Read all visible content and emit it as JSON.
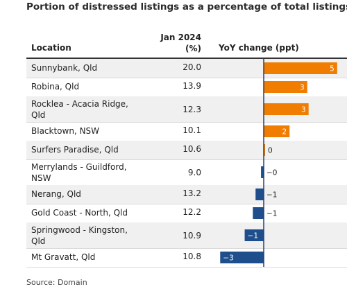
{
  "title": "Portion of distressed listings as a percentage of total listings",
  "headers": {
    "location": "Location",
    "value_line1": "Jan 2024",
    "value_line2": "(%)",
    "yoy": "YoY change (ppt)"
  },
  "source": "Source: Domain",
  "colors": {
    "positive": "#f07c00",
    "negative": "#1f4e8c",
    "axis": "#2a3f6e"
  },
  "chart_data": {
    "type": "table",
    "title": "Portion of distressed listings as a percentage of total listings",
    "columns": [
      "Location",
      "Jan 2024 (%)",
      "YoY change (ppt)"
    ],
    "rows": [
      {
        "location": "Sunnybank, Qld",
        "value": "20.0",
        "change": 5.4,
        "change_label": "5"
      },
      {
        "location": "Robina, Qld",
        "value": "13.9",
        "change": 3.2,
        "change_label": "3"
      },
      {
        "location": "Rocklea - Acacia Ridge, Qld",
        "value": "12.3",
        "change": 3.3,
        "change_label": "3"
      },
      {
        "location": "Blacktown, NSW",
        "value": "10.1",
        "change": 1.9,
        "change_label": "2"
      },
      {
        "location": "Surfers Paradise, Qld",
        "value": "10.6",
        "change": 0.1,
        "change_label": "0"
      },
      {
        "location": "Merrylands - Guildford, NSW",
        "value": "9.0",
        "change": -0.2,
        "change_label": "−0"
      },
      {
        "location": "Nerang, Qld",
        "value": "13.2",
        "change": -0.6,
        "change_label": "−1"
      },
      {
        "location": "Gold Coast - North, Qld",
        "value": "12.2",
        "change": -0.8,
        "change_label": "−1"
      },
      {
        "location": "Springwood - Kingston, Qld",
        "value": "10.9",
        "change": -1.4,
        "change_label": "−1"
      },
      {
        "location": "Mt Gravatt, Qld",
        "value": "10.8",
        "change": -3.2,
        "change_label": "−3"
      }
    ]
  }
}
